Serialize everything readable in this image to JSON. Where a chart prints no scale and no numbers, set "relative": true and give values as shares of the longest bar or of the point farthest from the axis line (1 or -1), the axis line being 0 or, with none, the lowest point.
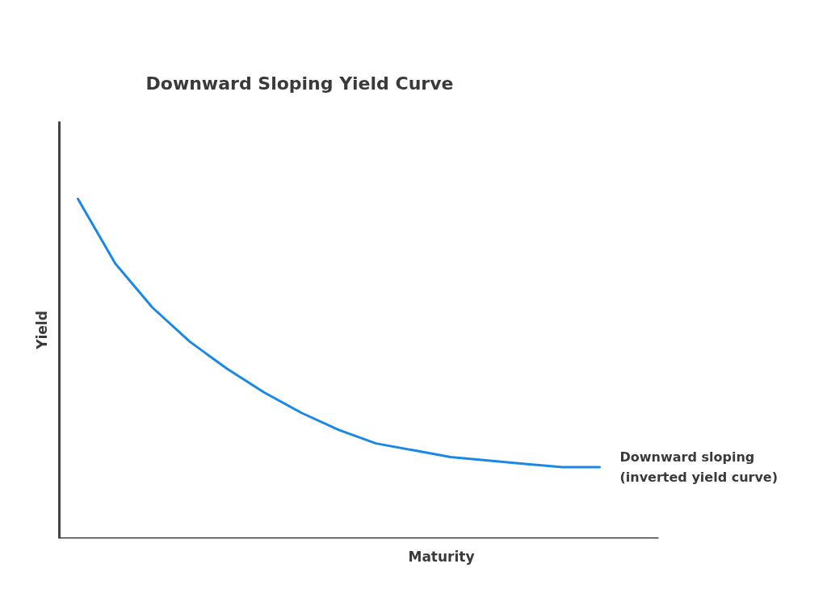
{
  "chart_data": {
    "type": "line",
    "title": "Downward Sloping Yield Curve",
    "xlabel": "Maturity",
    "ylabel": "Yield",
    "relative": true,
    "categories": [
      null,
      null,
      null,
      null,
      null,
      null,
      null,
      null,
      null,
      null,
      null,
      null,
      null,
      null,
      null
    ],
    "series": [
      {
        "color": "#1a88e6",
        "values": [
          1.0,
          0.81,
          0.68,
          0.58,
          0.5,
          0.43,
          0.37,
          0.32,
          0.28,
          0.26,
          0.24,
          0.23,
          0.22,
          0.21,
          0.21
        ]
      }
    ],
    "annotations": [
      "Downward sloping\n(inverted yield curve)"
    ],
    "marker": "none"
  }
}
